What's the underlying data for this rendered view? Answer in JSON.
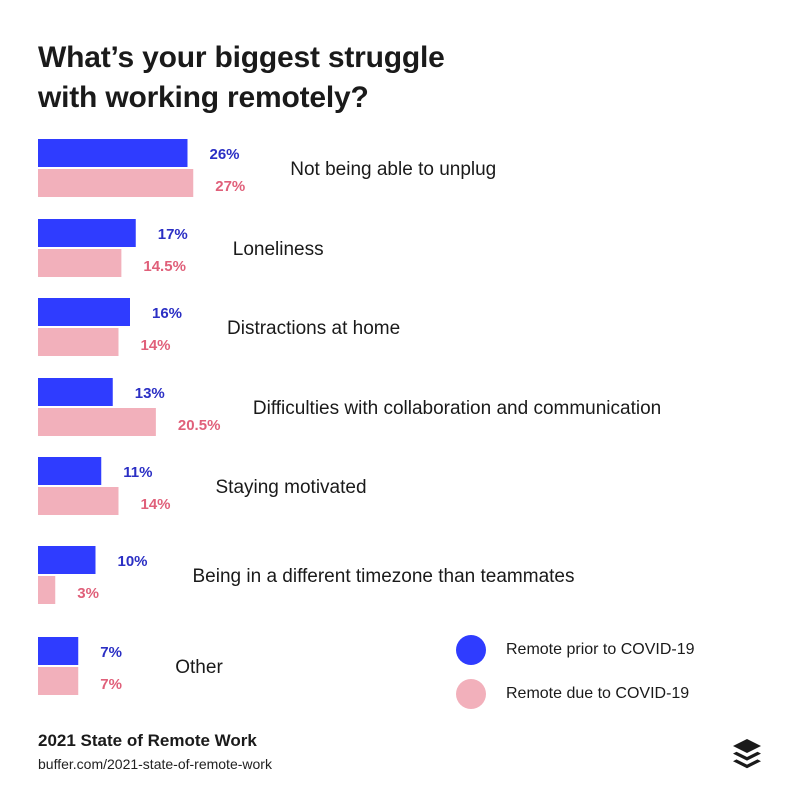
{
  "title_lines": [
    "What’s your biggest struggle",
    "with working remotely?"
  ],
  "colors": {
    "prior": "#2f3cff",
    "due": "#f2b0bb",
    "prior_text": "#2b2fc4",
    "due_text": "#e0607a"
  },
  "chart_data": {
    "type": "bar",
    "orientation": "horizontal",
    "title": "What’s your biggest struggle with working remotely?",
    "categories": [
      "Not being able to unplug",
      "Loneliness",
      "Distractions at home",
      "Difficulties with collaboration and communication",
      "Staying motivated",
      "Being in a different timezone than teammates",
      "Other"
    ],
    "series": [
      {
        "name": "Remote prior to COVID-19",
        "values": [
          26,
          17,
          16,
          13,
          11,
          10,
          7
        ],
        "labels": [
          "26%",
          "17%",
          "16%",
          "13%",
          "11%",
          "10%",
          "7%"
        ]
      },
      {
        "name": "Remote due to COVID-19",
        "values": [
          27,
          14.5,
          14,
          20.5,
          14,
          3,
          7
        ],
        "labels": [
          "27%",
          "14.5%",
          "14%",
          "20.5%",
          "14%",
          "3%",
          "7%"
        ]
      }
    ],
    "legend": "bottom-right",
    "grid": false
  },
  "legend": {
    "prior_label": "Remote prior to COVID-19",
    "due_label": "Remote due to COVID-19"
  },
  "footer": {
    "title": "2021 State of Remote Work",
    "url": "buffer.com/2021-state-of-remote-work"
  },
  "logo_icon": "buffer-stack-icon"
}
